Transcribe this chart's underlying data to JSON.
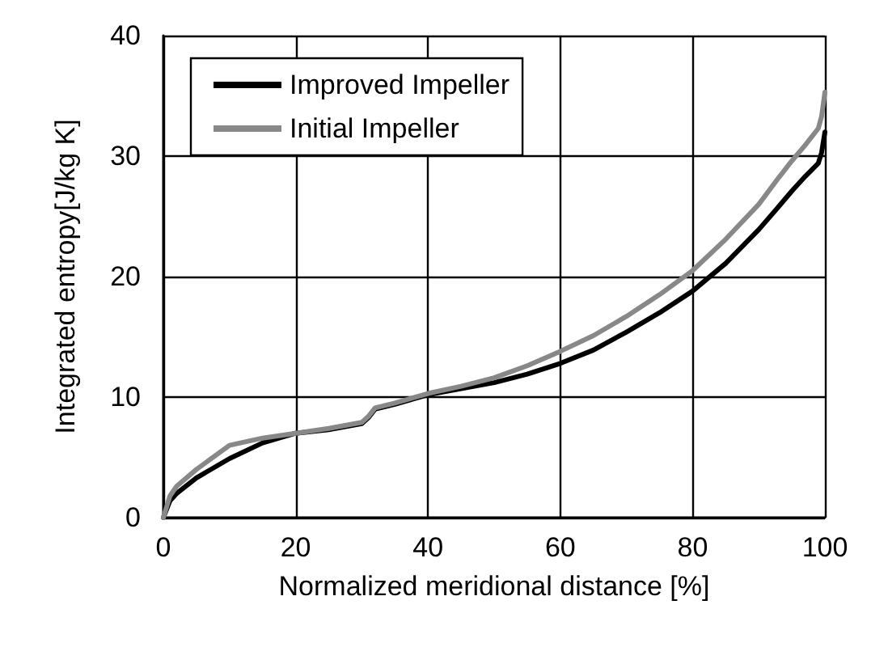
{
  "chart_data": {
    "type": "line",
    "xlabel": "Normalized meridional distance [%]",
    "ylabel": "Integrated entropy[J/kg K]",
    "xlim": [
      0,
      100
    ],
    "xticks": [
      0,
      20,
      40,
      60,
      80,
      100
    ],
    "ylim": [
      0,
      40
    ],
    "yticks": [
      0,
      10,
      20,
      30,
      40
    ],
    "grid": true,
    "legend": "top left",
    "marker": "none",
    "line_style": "solid",
    "series": [
      {
        "name": "Improved Impeller",
        "color": "#000000",
        "x": [
          0,
          1,
          2,
          5,
          10,
          15,
          20,
          25,
          30,
          31,
          32,
          35,
          40,
          45,
          50,
          55,
          60,
          65,
          70,
          75,
          80,
          85,
          90,
          93,
          95,
          97,
          99,
          99.5,
          100
        ],
        "values": [
          0,
          1.4,
          2,
          3.3,
          4.9,
          6.2,
          7,
          7.3,
          7.8,
          8.3,
          9,
          9.4,
          10.2,
          10.7,
          11.2,
          11.9,
          12.8,
          13.9,
          15.4,
          17,
          18.8,
          21.1,
          23.9,
          25.8,
          27.1,
          28.3,
          29.4,
          30.3,
          32
        ]
      },
      {
        "name": "Initial Impeller",
        "color": "#888888",
        "x": [
          0,
          1,
          2,
          5,
          10,
          15,
          20,
          25,
          30,
          31,
          32,
          35,
          40,
          45,
          50,
          55,
          60,
          65,
          70,
          75,
          80,
          85,
          90,
          93,
          95,
          97,
          99,
          99.5,
          100
        ],
        "values": [
          0,
          1.8,
          2.6,
          4,
          6,
          6.6,
          7,
          7.4,
          7.9,
          8.4,
          9.1,
          9.5,
          10.3,
          10.9,
          11.6,
          12.6,
          13.8,
          15.1,
          16.7,
          18.5,
          20.5,
          23.1,
          26,
          28.2,
          29.6,
          30.9,
          32.3,
          33.3,
          35.3
        ]
      }
    ]
  }
}
